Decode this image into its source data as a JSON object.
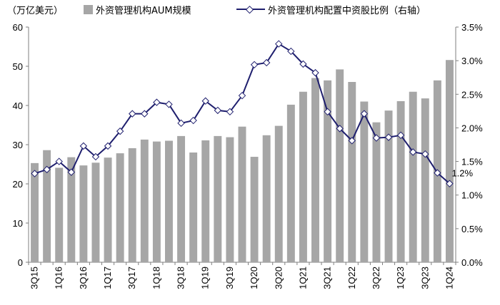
{
  "chart_data": {
    "type": "bar+line",
    "unit_label": "（万亿美元）",
    "categories": [
      "3Q15",
      "4Q15",
      "1Q16",
      "2Q16",
      "3Q16",
      "4Q16",
      "1Q17",
      "2Q17",
      "3Q17",
      "4Q17",
      "1Q18",
      "2Q18",
      "3Q18",
      "4Q18",
      "1Q19",
      "2Q19",
      "3Q19",
      "4Q19",
      "1Q20",
      "2Q20",
      "3Q20",
      "4Q20",
      "1Q21",
      "2Q21",
      "3Q21",
      "4Q21",
      "1Q22",
      "2Q22",
      "3Q22",
      "4Q22",
      "1Q23",
      "2Q23",
      "3Q23",
      "4Q23",
      "1Q24"
    ],
    "x_tick_labels": [
      "3Q15",
      "",
      "1Q16",
      "",
      "3Q16",
      "",
      "1Q17",
      "",
      "3Q17",
      "",
      "1Q18",
      "",
      "3Q18",
      "",
      "1Q19",
      "",
      "3Q19",
      "",
      "1Q20",
      "",
      "3Q20",
      "",
      "1Q21",
      "",
      "3Q21",
      "",
      "1Q22",
      "",
      "3Q22",
      "",
      "1Q23",
      "",
      "3Q23",
      "",
      "1Q24"
    ],
    "series": [
      {
        "name": "外资管理机构AUM规模",
        "type": "bar",
        "axis": "left",
        "color": "#a6a6a6",
        "values": [
          25.3,
          28.6,
          24.1,
          26.8,
          24.7,
          25.4,
          26.7,
          27.8,
          29.1,
          31.3,
          30.8,
          31.0,
          32.2,
          28.0,
          31.1,
          32.2,
          31.9,
          34.6,
          26.9,
          32.4,
          34.8,
          40.2,
          43.5,
          47.0,
          46.4,
          49.2,
          46.0,
          41.0,
          35.7,
          38.7,
          41.1,
          43.5,
          41.8,
          46.4,
          51.6
        ]
      },
      {
        "name": "外资管理机构配置中资股比例（右轴）",
        "type": "line",
        "axis": "right",
        "color": "#1f1f6e",
        "marker": "diamond",
        "values": [
          1.32,
          1.38,
          1.5,
          1.34,
          1.73,
          1.57,
          1.73,
          1.95,
          2.21,
          2.21,
          2.38,
          2.35,
          2.07,
          2.11,
          2.4,
          2.26,
          2.24,
          2.48,
          2.94,
          2.97,
          3.25,
          3.14,
          2.95,
          2.82,
          2.24,
          1.99,
          1.81,
          2.21,
          1.85,
          1.86,
          1.89,
          1.64,
          1.61,
          1.33,
          1.17
        ]
      }
    ],
    "y_left": {
      "min": 0,
      "max": 60,
      "ticks": [
        0,
        10,
        20,
        30,
        40,
        50,
        60
      ],
      "tick_labels": [
        "0",
        "10",
        "20",
        "30",
        "40",
        "50",
        "60"
      ]
    },
    "y_right": {
      "min": 0,
      "max": 3.5,
      "ticks": [
        0,
        0.5,
        1.0,
        1.5,
        2.0,
        2.5,
        3.0,
        3.5
      ],
      "tick_labels": [
        "0.0%",
        "0.5%",
        "1.0%",
        "1.5%",
        "2.0%",
        "2.5%",
        "3.0%",
        "3.5%"
      ]
    },
    "annotation": {
      "text": "1.2%",
      "series_index": 1,
      "point_index": 34
    },
    "legend_position": "top",
    "grid": false
  }
}
